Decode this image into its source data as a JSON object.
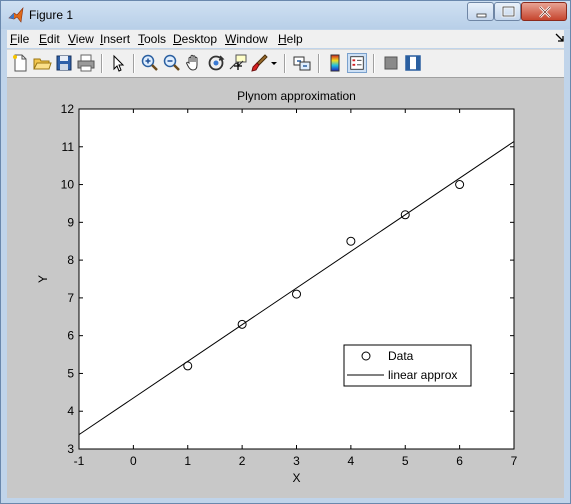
{
  "window": {
    "title": "Figure 1"
  },
  "menu": {
    "items": [
      {
        "label": "File",
        "key": "F"
      },
      {
        "label": "Edit",
        "key": "E"
      },
      {
        "label": "View",
        "key": "V"
      },
      {
        "label": "Insert",
        "key": "I"
      },
      {
        "label": "Tools",
        "key": "T"
      },
      {
        "label": "Desktop",
        "key": "D"
      },
      {
        "label": "Window",
        "key": "W"
      },
      {
        "label": "Help",
        "key": "H"
      }
    ]
  },
  "toolbar": {
    "icons": [
      "new-figure-icon",
      "open-file-icon",
      "save-icon",
      "print-icon",
      "select-arrow-icon",
      "zoom-in-icon",
      "zoom-out-icon",
      "pan-hand-icon",
      "rotate-3d-icon",
      "data-cursor-icon",
      "brush-icon",
      "brush-dropdown-icon",
      "link-plot-icon",
      "colorbar-icon",
      "legend-icon",
      "hide-plot-tools-icon",
      "show-plot-tools-icon"
    ]
  },
  "chart_data": {
    "type": "scatter",
    "title": "Plynom approximation",
    "xlabel": "X",
    "ylabel": "Y",
    "xlim": [
      -1,
      7
    ],
    "ylim": [
      3,
      12
    ],
    "xticks": [
      "-1",
      "0",
      "1",
      "2",
      "3",
      "4",
      "5",
      "6",
      "7"
    ],
    "yticks": [
      "3",
      "4",
      "5",
      "6",
      "7",
      "8",
      "9",
      "10",
      "11",
      "12"
    ],
    "series": [
      {
        "name": "Data",
        "style": "circle-markers",
        "x": [
          1,
          2,
          3,
          4,
          5,
          6
        ],
        "y": [
          5.2,
          6.3,
          7.1,
          8.5,
          9.2,
          10.0
        ]
      },
      {
        "name": "linear approx",
        "style": "line",
        "x": [
          -1,
          7
        ],
        "y": [
          3.38,
          11.14
        ]
      }
    ],
    "legend": {
      "position": "lower-right",
      "entries": [
        "Data",
        "linear approx"
      ]
    },
    "colors": {
      "axes_bg": "#ffffff",
      "figure_bg": "#c8c8c8",
      "ink": "#000000"
    }
  }
}
